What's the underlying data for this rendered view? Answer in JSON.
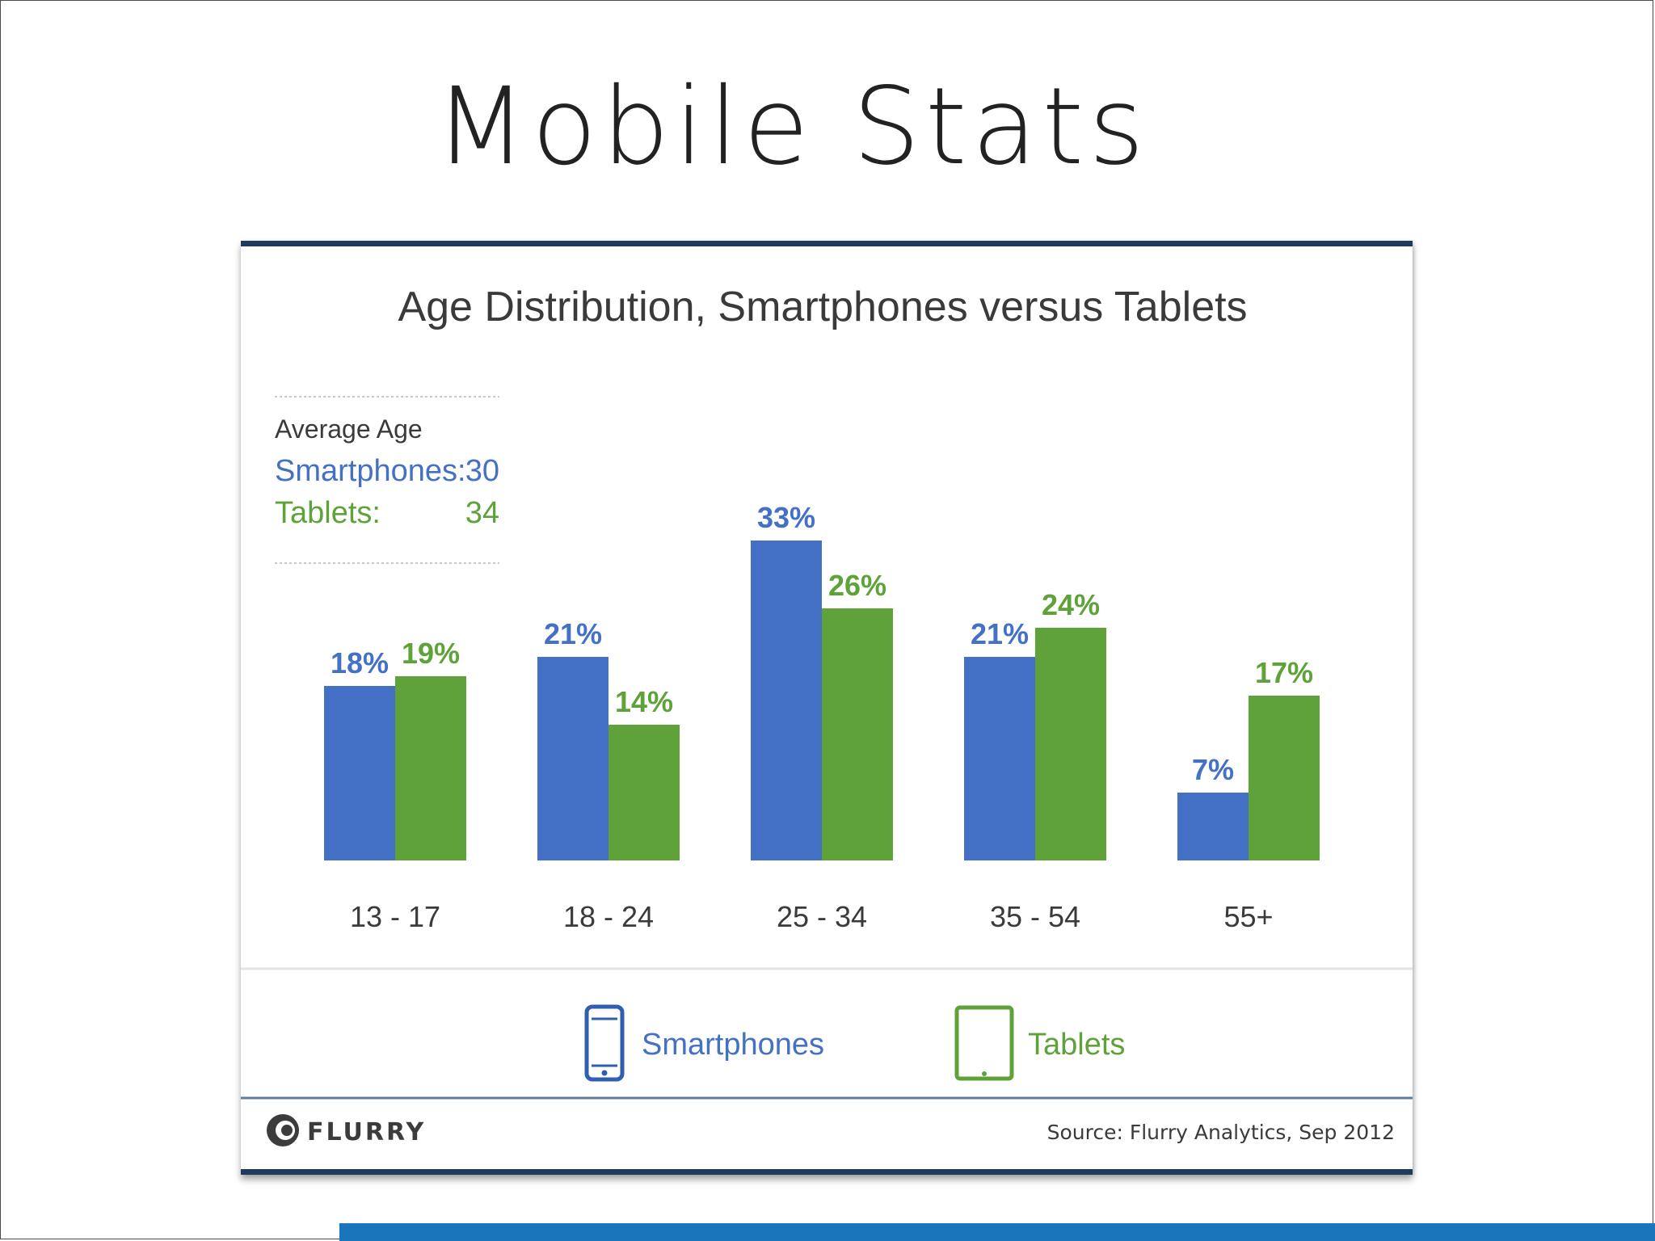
{
  "slide": {
    "title": "Mobile Stats"
  },
  "card": {
    "average_age": {
      "heading": "Average Age",
      "smartphones_label": "Smartphones:",
      "smartphones_value": "30",
      "tablets_label": "Tablets:",
      "tablets_value": "34"
    },
    "legend": {
      "smartphones": "Smartphones",
      "tablets": "Tablets"
    },
    "footer": {
      "logo_text": "FLURRY",
      "source": "Source: Flurry Analytics, Sep 2012"
    }
  },
  "colors": {
    "smartphones": "#4470c5",
    "tablets": "#5ea239",
    "frame": "#1f3b5c",
    "accent_bar": "#1b75bb"
  },
  "chart_data": {
    "type": "bar",
    "title": "Age Distribution, Smartphones versus Tablets",
    "categories": [
      "13 - 17",
      "18 - 24",
      "25 - 34",
      "35 - 54",
      "55+"
    ],
    "series": [
      {
        "name": "Smartphones",
        "values": [
          18,
          21,
          33,
          21,
          7
        ],
        "labels": [
          "18%",
          "21%",
          "33%",
          "21%",
          "7%"
        ],
        "color": "#4470c5"
      },
      {
        "name": "Tablets",
        "values": [
          19,
          14,
          26,
          24,
          17
        ],
        "labels": [
          "19%",
          "14%",
          "26%",
          "24%",
          "17%"
        ],
        "color": "#5ea239"
      }
    ],
    "ylim": [
      0,
      33
    ],
    "grid": false,
    "legend": "bottom"
  }
}
